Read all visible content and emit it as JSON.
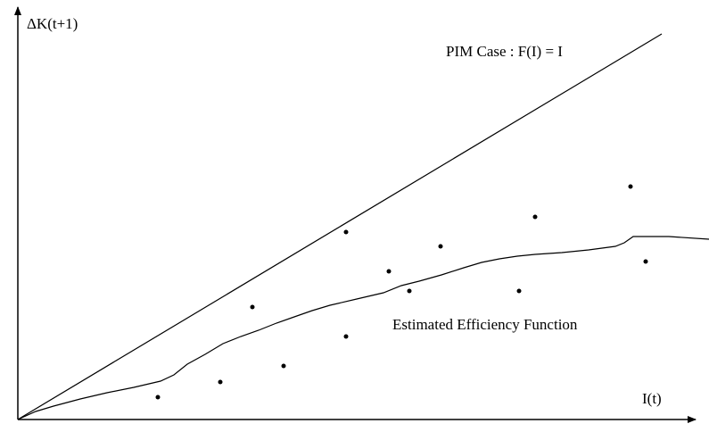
{
  "y_axis_label": "ΔK(t+1)",
  "x_axis_label": "I(t)",
  "line_label": "PIM Case : F(I) = I",
  "curve_label": "Estimated Efficiency Function"
}
